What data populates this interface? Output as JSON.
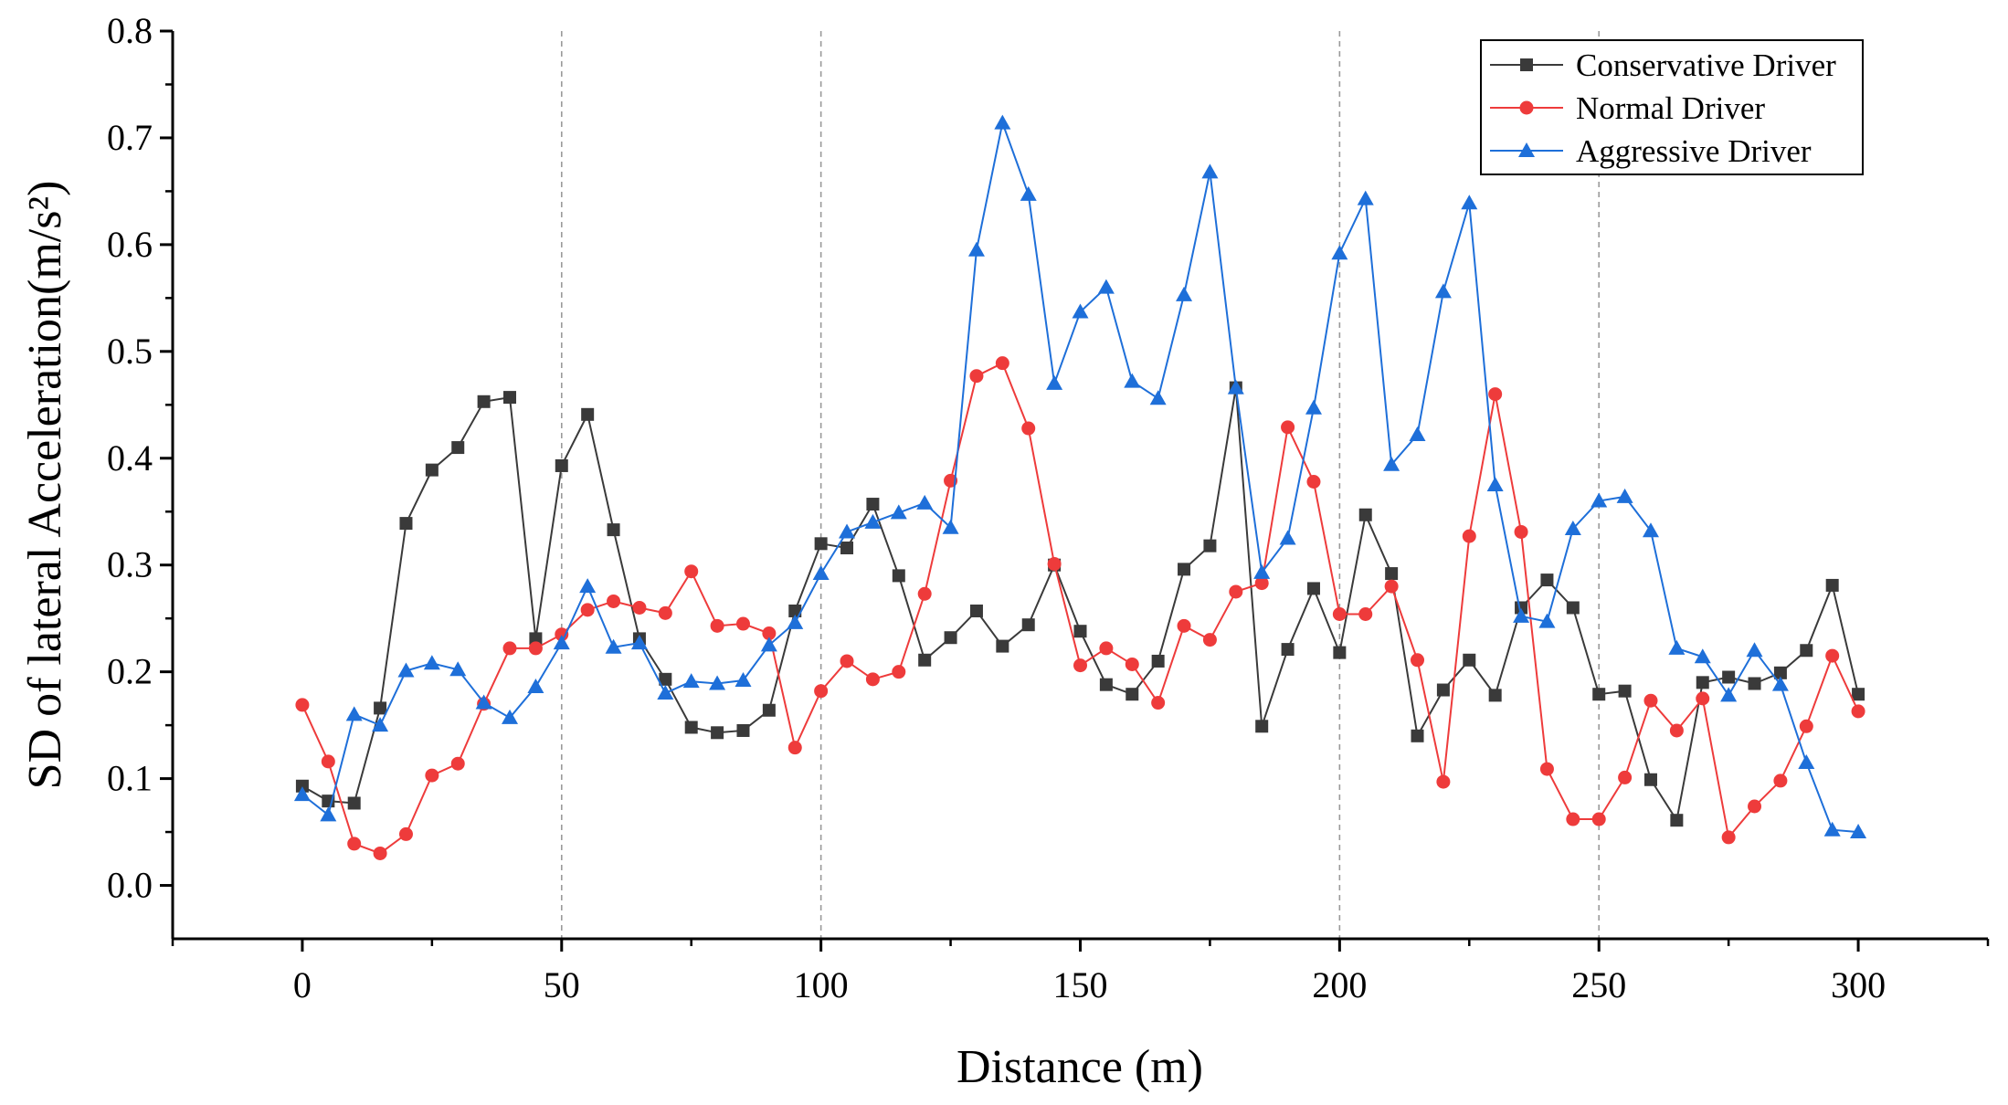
{
  "chart_data": {
    "type": "line",
    "title": "",
    "xlabel": "Distance (m)",
    "ylabel": "SD of lateral Acceleration(m/s²)",
    "xlim": [
      -25,
      325
    ],
    "ylim": [
      -0.05,
      0.8
    ],
    "x_ticks": [
      0,
      50,
      100,
      150,
      200,
      250,
      300
    ],
    "x_tick_labels": [
      "0",
      "50",
      "100",
      "150",
      "200",
      "250",
      "300"
    ],
    "y_ticks": [
      0.0,
      0.1,
      0.2,
      0.3,
      0.4,
      0.5,
      0.6,
      0.7,
      0.8
    ],
    "y_tick_labels": [
      "0.0",
      "0.1",
      "0.2",
      "0.3",
      "0.4",
      "0.5",
      "0.6",
      "0.7",
      "0.8"
    ],
    "reference_lines_x": [
      50,
      100,
      200,
      250
    ],
    "legend_position": "top-right",
    "x": [
      0,
      5,
      10,
      15,
      20,
      25,
      30,
      35,
      40,
      45,
      50,
      55,
      60,
      65,
      70,
      75,
      80,
      85,
      90,
      95,
      100,
      105,
      110,
      115,
      120,
      125,
      130,
      135,
      140,
      145,
      150,
      155,
      160,
      165,
      170,
      175,
      180,
      185,
      190,
      195,
      200,
      205,
      210,
      215,
      220,
      225,
      230,
      235,
      240,
      245,
      250,
      255,
      260,
      265,
      270,
      275,
      280,
      285,
      290,
      295,
      300
    ],
    "series": [
      {
        "name": "Conservative Driver",
        "color": "#3a3a3a",
        "marker": "square",
        "values": [
          0.093,
          0.079,
          0.077,
          0.166,
          0.339,
          0.389,
          0.41,
          0.453,
          0.457,
          0.231,
          0.393,
          0.441,
          0.333,
          0.231,
          0.193,
          0.148,
          0.143,
          0.145,
          0.164,
          0.257,
          0.32,
          0.316,
          0.357,
          0.29,
          0.211,
          0.232,
          0.257,
          0.224,
          0.244,
          0.3,
          0.238,
          0.188,
          0.179,
          0.21,
          0.296,
          0.318,
          0.466,
          0.149,
          0.221,
          0.278,
          0.218,
          0.347,
          0.292,
          0.14,
          0.183,
          0.211,
          0.178,
          0.26,
          0.286,
          0.26,
          0.179,
          0.182,
          0.099,
          0.061,
          0.19,
          0.195,
          0.189,
          0.199,
          0.22,
          0.281,
          0.179
        ]
      },
      {
        "name": "Normal Driver",
        "color": "#ee3b3b",
        "marker": "circle",
        "values": [
          0.169,
          0.116,
          0.039,
          0.03,
          0.048,
          0.103,
          0.114,
          0.17,
          0.222,
          0.222,
          0.235,
          0.258,
          0.266,
          0.26,
          0.255,
          0.294,
          0.243,
          0.245,
          0.236,
          0.129,
          0.182,
          0.21,
          0.193,
          0.2,
          0.273,
          0.379,
          0.477,
          0.489,
          0.428,
          0.301,
          0.206,
          0.222,
          0.207,
          0.171,
          0.243,
          0.23,
          0.275,
          0.283,
          0.429,
          0.378,
          0.254,
          0.254,
          0.28,
          0.211,
          0.097,
          0.327,
          0.46,
          0.331,
          0.109,
          0.062,
          0.062,
          0.101,
          0.173,
          0.145,
          0.175,
          0.045,
          0.074,
          0.098,
          0.149,
          0.215,
          0.163
        ]
      },
      {
        "name": "Aggressive Driver",
        "color": "#1e6fd9",
        "marker": "triangle",
        "values": [
          0.085,
          0.066,
          0.16,
          0.15,
          0.201,
          0.208,
          0.202,
          0.171,
          0.157,
          0.186,
          0.227,
          0.28,
          0.223,
          0.227,
          0.18,
          0.191,
          0.189,
          0.192,
          0.225,
          0.246,
          0.292,
          0.331,
          0.34,
          0.349,
          0.358,
          0.335,
          0.595,
          0.714,
          0.647,
          0.47,
          0.537,
          0.56,
          0.472,
          0.456,
          0.553,
          0.668,
          0.466,
          0.293,
          0.325,
          0.447,
          0.592,
          0.643,
          0.394,
          0.422,
          0.556,
          0.639,
          0.375,
          0.252,
          0.247,
          0.334,
          0.36,
          0.364,
          0.332,
          0.222,
          0.214,
          0.178,
          0.22,
          0.188,
          0.115,
          0.052,
          0.05
        ]
      }
    ]
  }
}
